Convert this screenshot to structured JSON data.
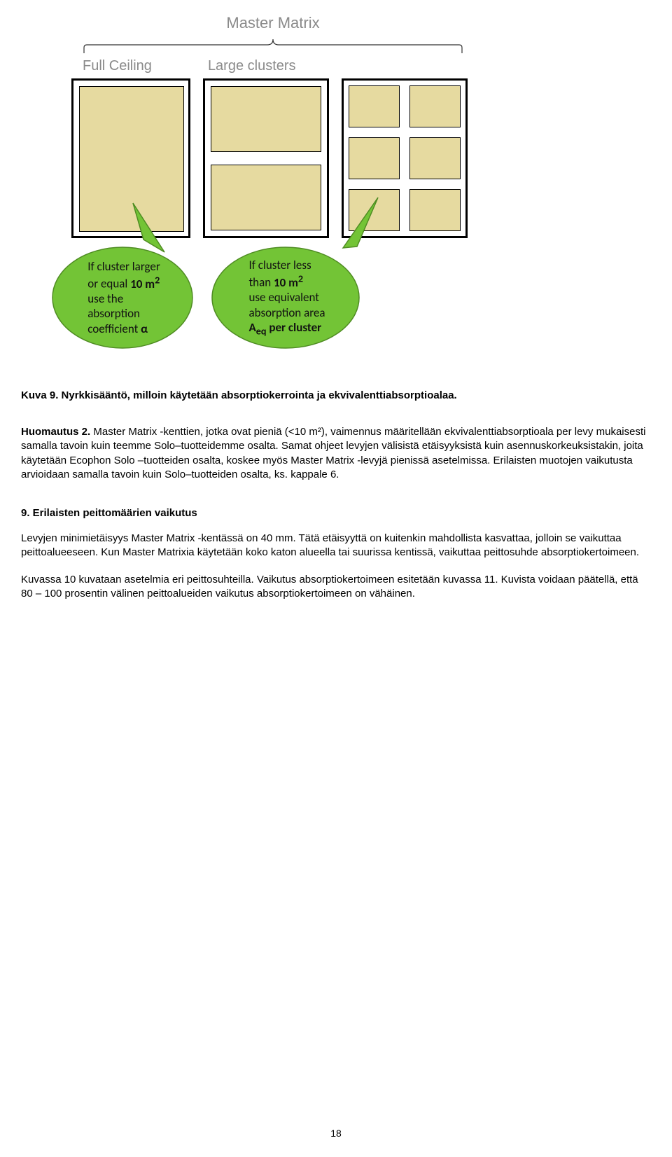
{
  "diagram": {
    "master_title": "Master Matrix",
    "label_full": "Full Ceiling",
    "label_large": "Large clusters",
    "panel_fill": "#e6daa0",
    "panel_border": "#000000",
    "bubble_left": {
      "fill": "#73c436",
      "stroke": "#4f8c23",
      "lines": [
        "If cluster larger",
        "or equal <b>10 m<sup>2</sup></b>",
        "use the",
        "absorption",
        "coefficient <b>α</b>"
      ]
    },
    "bubble_right": {
      "fill": "#73c436",
      "stroke": "#4f8c23",
      "lines": [
        "If cluster less",
        "than <b>10 m<sup>2</sup></b>",
        "use equivalent",
        "absorption area",
        "<b>A<sub>eq</sub> per cluster</b>"
      ]
    }
  },
  "caption": "Kuva 9. Nyrkkisääntö, milloin käytetään absorptiokerrointa ja ekvivalenttiabsorptioalaa.",
  "note_head": "Huomautus 2.",
  "note_body": "Master Matrix -kenttien, jotka ovat pieniä (<10 m²), vaimennus määritellään ekvivalenttiabsorptioala per levy mukaisesti samalla tavoin kuin teemme Solo–tuotteidemme osalta. Samat ohjeet levyjen välisistä etäisyyksistä kuin asennuskorkeuksistakin, joita käytetään Ecophon Solo –tuotteiden osalta, koskee myös Master Matrix -levyjä pienissä asetelmissa. Erilaisten muotojen vaikutusta arvioidaan samalla tavoin kuin Solo–tuotteiden osalta, ks. kappale 6.",
  "section_head": "9. Erilaisten peittomäärien vaikutus",
  "para1": "Levyjen minimietäisyys Master Matrix -kentässä on 40 mm. Tätä etäisyyttä on kuitenkin mahdollista kasvattaa, jolloin se vaikuttaa peittoalueeseen. Kun Master Matrixia käytetään koko katon alueella tai suurissa kentissä, vaikuttaa peittosuhde absorptiokertoimeen.",
  "para2": "Kuvassa 10 kuvataan asetelmia eri peittosuhteilla. Vaikutus absorptiokertoimeen esitetään kuvassa 11. Kuvista voidaan päätellä, että 80 – 100 prosentin välinen peittoalueiden vaikutus absorptiokertoimeen on vähäinen.",
  "page_number": "18"
}
